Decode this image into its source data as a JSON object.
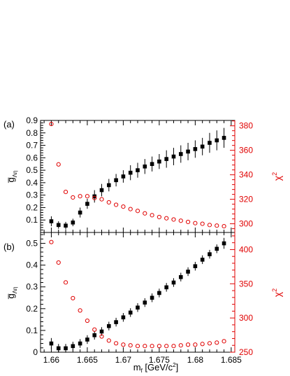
{
  "chart_data": [
    {
      "type": "scatter",
      "panel_label": "(a)",
      "ylabel_left": "g̅",
      "ylabel_left_sub": "Λη",
      "ylabel_right": "χ",
      "ylabel_right_sup": "2",
      "x_ticks": [
        1.66,
        1.665,
        1.67,
        1.675,
        1.68,
        1.685
      ],
      "xlim": [
        1.6585,
        1.6855
      ],
      "ylim_left": [
        0.0,
        0.9
      ],
      "yticks_left": [
        0.1,
        0.2,
        0.3,
        0.4,
        0.5,
        0.6,
        0.7,
        0.8,
        0.9
      ],
      "ytick_labels_left": [
        "0.1",
        "0.2",
        "0.3",
        "0.4",
        "0.5",
        "0.6",
        "0.7",
        "0.8",
        "0.9"
      ],
      "ylim_right": [
        292.9,
        384.4
      ],
      "yticks_right": [
        300,
        320,
        340,
        360,
        380
      ],
      "ytick_labels_right": [
        "300",
        "320",
        "340",
        "360",
        "380"
      ],
      "series": [
        {
          "marker": "filled-square",
          "color": "#000000",
          "axis": "left",
          "x": [
            1.66,
            1.661,
            1.662,
            1.663,
            1.664,
            1.665,
            1.666,
            1.667,
            1.668,
            1.669,
            1.67,
            1.671,
            1.672,
            1.673,
            1.674,
            1.675,
            1.676,
            1.677,
            1.678,
            1.679,
            1.68,
            1.681,
            1.682,
            1.683,
            1.684
          ],
          "y": [
            0.09,
            0.06,
            0.055,
            0.08,
            0.16,
            0.23,
            0.29,
            0.34,
            0.38,
            0.42,
            0.45,
            0.48,
            0.5,
            0.53,
            0.55,
            0.57,
            0.59,
            0.61,
            0.63,
            0.65,
            0.67,
            0.69,
            0.72,
            0.74,
            0.76
          ],
          "err": [
            0.04,
            0.03,
            0.03,
            0.03,
            0.04,
            0.04,
            0.05,
            0.05,
            0.05,
            0.05,
            0.05,
            0.06,
            0.06,
            0.06,
            0.06,
            0.06,
            0.07,
            0.07,
            0.07,
            0.07,
            0.07,
            0.07,
            0.08,
            0.08,
            0.08
          ]
        },
        {
          "marker": "open-circle",
          "color": "#e00000",
          "axis": "right",
          "x": [
            1.66,
            1.661,
            1.662,
            1.663,
            1.664,
            1.665,
            1.666,
            1.667,
            1.668,
            1.669,
            1.67,
            1.671,
            1.672,
            1.673,
            1.674,
            1.675,
            1.676,
            1.677,
            1.678,
            1.679,
            1.68,
            1.681,
            1.682,
            1.683,
            1.684
          ],
          "y": [
            381.5,
            348.5,
            326,
            321.5,
            322.5,
            322.5,
            321,
            320,
            317.5,
            315.5,
            314,
            312,
            310.5,
            308.5,
            307,
            305.5,
            304.5,
            303.5,
            302.5,
            301.5,
            300.5,
            300,
            299,
            298.5,
            298
          ]
        }
      ]
    },
    {
      "type": "scatter",
      "panel_label": "(b)",
      "ylabel_left": "g̅",
      "ylabel_left_sub": "Λη",
      "ylabel_right": "χ",
      "ylabel_right_sup": "2",
      "xlabel": "m",
      "xlabel_sub": "f",
      "xlabel_unit": " [GeV/c",
      "xlabel_unit_sup": "2",
      "xlabel_unit_end": "]",
      "x_ticks": [
        1.66,
        1.665,
        1.67,
        1.675,
        1.68,
        1.685
      ],
      "x_tick_labels": [
        "1.66",
        "1.665",
        "1.67",
        "1.675",
        "1.68",
        "1.685"
      ],
      "xlim": [
        1.6585,
        1.6855
      ],
      "ylim_left": [
        0.0,
        0.55
      ],
      "yticks_left": [
        0,
        0.1,
        0.2,
        0.3,
        0.4,
        0.5
      ],
      "ytick_labels_left": [
        "0",
        "0.1",
        "0.2",
        "0.3",
        "0.4",
        "0.5"
      ],
      "ylim_right": [
        250,
        425
      ],
      "yticks_right": [
        250,
        300,
        350,
        400
      ],
      "ytick_labels_right": [
        "250",
        "300",
        "350",
        "400"
      ],
      "series": [
        {
          "marker": "filled-square",
          "color": "#000000",
          "axis": "left",
          "x": [
            1.66,
            1.661,
            1.662,
            1.663,
            1.664,
            1.665,
            1.666,
            1.667,
            1.668,
            1.669,
            1.67,
            1.671,
            1.672,
            1.673,
            1.674,
            1.675,
            1.676,
            1.677,
            1.678,
            1.679,
            1.68,
            1.681,
            1.682,
            1.683,
            1.684
          ],
          "y": [
            0.04,
            0.018,
            0.018,
            0.028,
            0.04,
            0.058,
            0.078,
            0.095,
            0.12,
            0.138,
            0.16,
            0.182,
            0.205,
            0.228,
            0.25,
            0.272,
            0.298,
            0.32,
            0.345,
            0.37,
            0.395,
            0.425,
            0.45,
            0.475,
            0.5
          ],
          "err": [
            0.025,
            0.02,
            0.02,
            0.02,
            0.02,
            0.02,
            0.02,
            0.02,
            0.02,
            0.02,
            0.02,
            0.02,
            0.02,
            0.02,
            0.02,
            0.02,
            0.02,
            0.02,
            0.02,
            0.02,
            0.02,
            0.02,
            0.02,
            0.02,
            0.025
          ]
        },
        {
          "marker": "open-circle",
          "color": "#e00000",
          "axis": "right",
          "x": [
            1.66,
            1.661,
            1.662,
            1.663,
            1.664,
            1.665,
            1.666,
            1.667,
            1.668,
            1.669,
            1.67,
            1.671,
            1.672,
            1.673,
            1.674,
            1.675,
            1.676,
            1.677,
            1.678,
            1.679,
            1.68,
            1.681,
            1.682,
            1.683,
            1.684
          ],
          "y": [
            411,
            381,
            352,
            329,
            311,
            296,
            283,
            273,
            267,
            263,
            261,
            260,
            259,
            259,
            259,
            259,
            259,
            259,
            260,
            261,
            261,
            262,
            263,
            264,
            266
          ]
        }
      ]
    }
  ]
}
